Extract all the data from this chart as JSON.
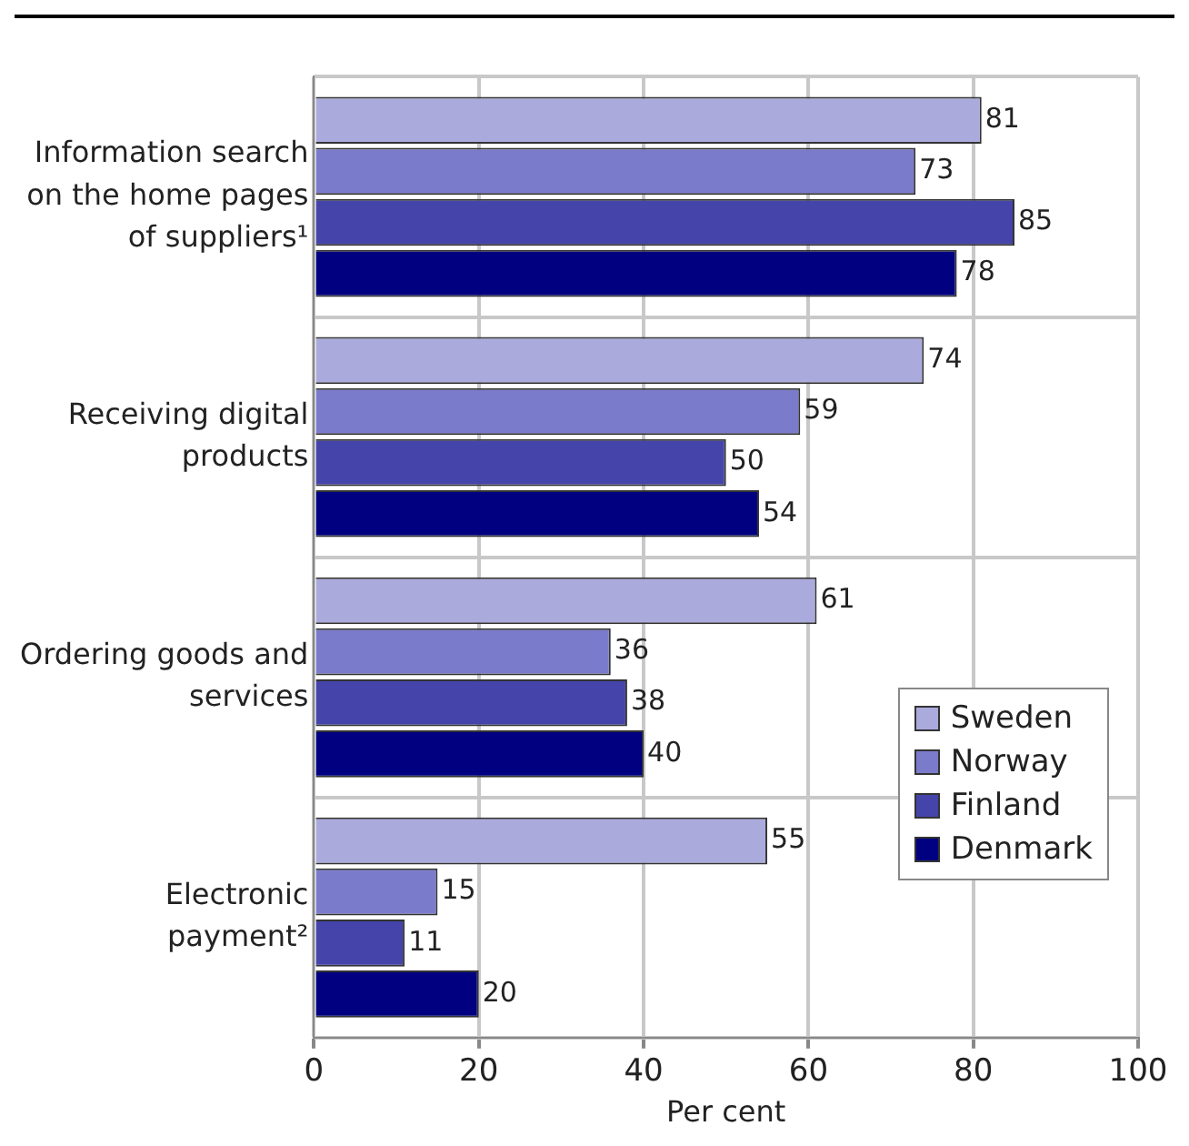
{
  "chart_data": {
    "type": "bar",
    "orientation": "horizontal",
    "xlabel": "Per cent",
    "categories": [
      "Information search on the home pages of suppliers¹",
      "Receiving digital products",
      "Ordering goods and services",
      "Electronic payment²"
    ],
    "series": [
      {
        "name": "Sweden",
        "color": "#aaaadd",
        "values": [
          81,
          74,
          61,
          55
        ]
      },
      {
        "name": "Norway",
        "color": "#7b7bcc",
        "values": [
          73,
          59,
          36,
          15
        ]
      },
      {
        "name": "Finland",
        "color": "#4444aa",
        "values": [
          85,
          50,
          38,
          11
        ]
      },
      {
        "name": "Denmark",
        "color": "#000080",
        "values": [
          78,
          54,
          40,
          20
        ]
      }
    ],
    "xlim": [
      0,
      100
    ],
    "xticks": [
      0,
      20,
      40,
      60,
      80,
      100
    ],
    "grid": true,
    "legend": "bottom right",
    "data_labels": true
  }
}
